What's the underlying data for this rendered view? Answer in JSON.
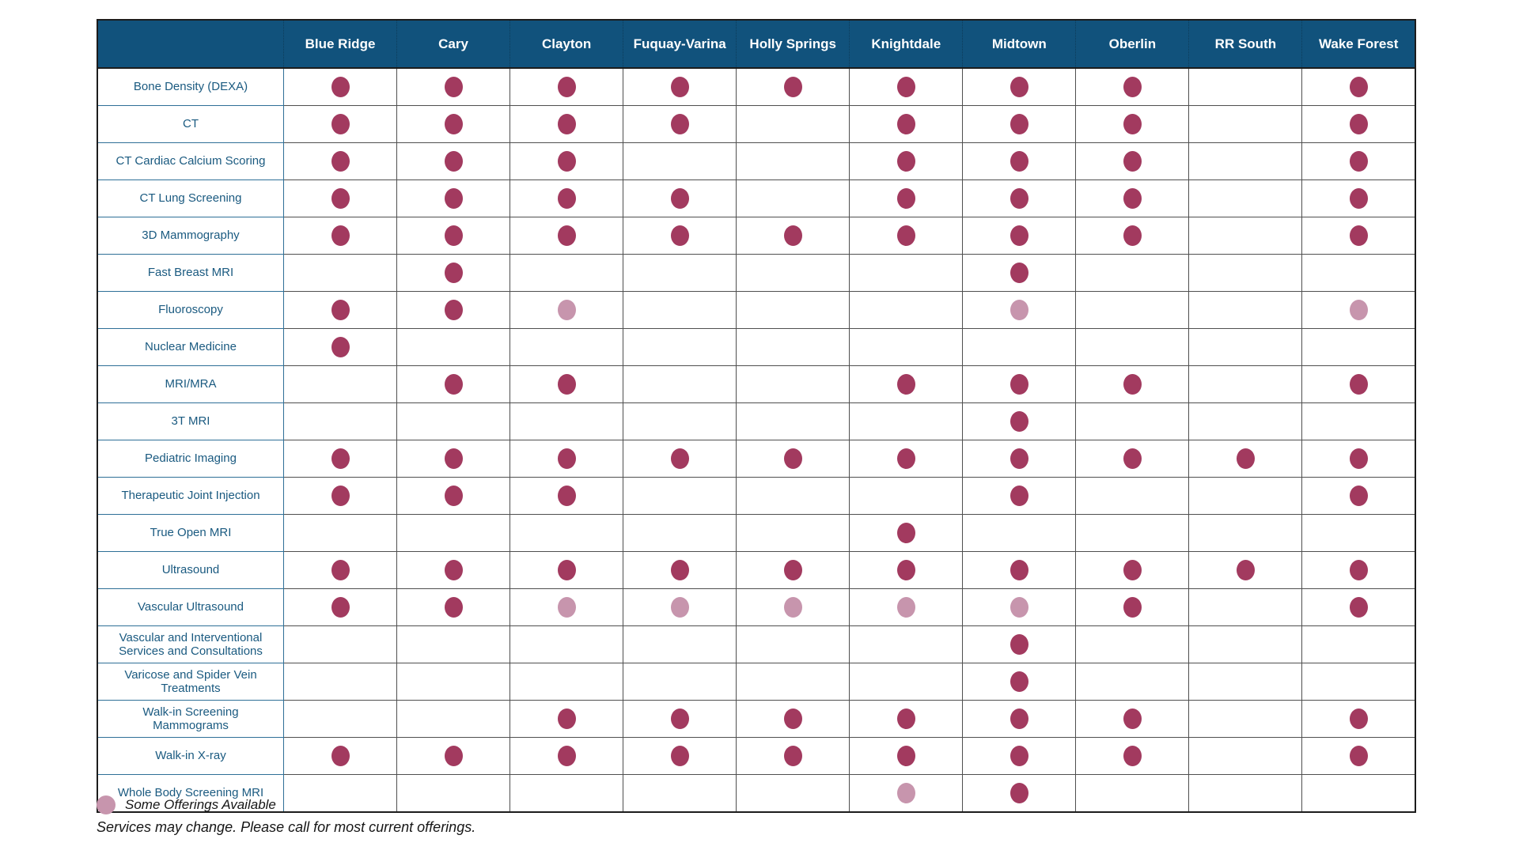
{
  "colors": {
    "header_bg": "#11527c",
    "full_dot": "#a23a5f",
    "some_dot": "#c795ad",
    "label_text": "#1a5a80"
  },
  "table": {
    "columns": [
      "Blue Ridge",
      "Cary",
      "Clayton",
      "Fuquay-Varina",
      "Holly Springs",
      "Knightdale",
      "Midtown",
      "Oberlin",
      "RR South",
      "Wake Forest"
    ],
    "rows": [
      {
        "label": "Bone Density (DEXA)",
        "cells": [
          "full",
          "full",
          "full",
          "full",
          "full",
          "full",
          "full",
          "full",
          "",
          "full"
        ]
      },
      {
        "label": "CT",
        "cells": [
          "full",
          "full",
          "full",
          "full",
          "",
          "full",
          "full",
          "full",
          "",
          "full"
        ]
      },
      {
        "label": "CT Cardiac Calcium Scoring",
        "cells": [
          "full",
          "full",
          "full",
          "",
          "",
          "full",
          "full",
          "full",
          "",
          "full"
        ]
      },
      {
        "label": "CT Lung Screening",
        "cells": [
          "full",
          "full",
          "full",
          "full",
          "",
          "full",
          "full",
          "full",
          "",
          "full"
        ]
      },
      {
        "label": "3D Mammography",
        "cells": [
          "full",
          "full",
          "full",
          "full",
          "full",
          "full",
          "full",
          "full",
          "",
          "full"
        ]
      },
      {
        "label": "Fast Breast MRI",
        "cells": [
          "",
          "full",
          "",
          "",
          "",
          "",
          "full",
          "",
          "",
          ""
        ]
      },
      {
        "label": "Fluoroscopy",
        "cells": [
          "full",
          "full",
          "some",
          "",
          "",
          "",
          "some",
          "",
          "",
          "some"
        ]
      },
      {
        "label": "Nuclear Medicine",
        "cells": [
          "full",
          "",
          "",
          "",
          "",
          "",
          "",
          "",
          "",
          ""
        ]
      },
      {
        "label": "MRI/MRA",
        "cells": [
          "",
          "full",
          "full",
          "",
          "",
          "full",
          "full",
          "full",
          "",
          "full"
        ]
      },
      {
        "label": "3T MRI",
        "cells": [
          "",
          "",
          "",
          "",
          "",
          "",
          "full",
          "",
          "",
          ""
        ]
      },
      {
        "label": "Pediatric Imaging",
        "cells": [
          "full",
          "full",
          "full",
          "full",
          "full",
          "full",
          "full",
          "full",
          "full",
          "full"
        ]
      },
      {
        "label": "Therapeutic Joint Injection",
        "cells": [
          "full",
          "full",
          "full",
          "",
          "",
          "",
          "full",
          "",
          "",
          "full"
        ]
      },
      {
        "label": "True Open MRI",
        "cells": [
          "",
          "",
          "",
          "",
          "",
          "full",
          "",
          "",
          "",
          ""
        ]
      },
      {
        "label": "Ultrasound",
        "cells": [
          "full",
          "full",
          "full",
          "full",
          "full",
          "full",
          "full",
          "full",
          "full",
          "full"
        ]
      },
      {
        "label": "Vascular Ultrasound",
        "cells": [
          "full",
          "full",
          "some",
          "some",
          "some",
          "some",
          "some",
          "full",
          "",
          "full"
        ]
      },
      {
        "label": "Vascular and Interventional Services and Consultations",
        "cells": [
          "",
          "",
          "",
          "",
          "",
          "",
          "full",
          "",
          "",
          ""
        ]
      },
      {
        "label": "Varicose and Spider Vein Treatments",
        "cells": [
          "",
          "",
          "",
          "",
          "",
          "",
          "full",
          "",
          "",
          ""
        ]
      },
      {
        "label": "Walk-in Screening Mammograms",
        "cells": [
          "",
          "",
          "full",
          "full",
          "full",
          "full",
          "full",
          "full",
          "",
          "full"
        ]
      },
      {
        "label": "Walk-in X-ray",
        "cells": [
          "full",
          "full",
          "full",
          "full",
          "full",
          "full",
          "full",
          "full",
          "",
          "full"
        ]
      },
      {
        "label": "Whole Body Screening MRI",
        "cells": [
          "",
          "",
          "",
          "",
          "",
          "some",
          "full",
          "",
          "",
          ""
        ]
      }
    ]
  },
  "legend": {
    "some_label": "Some Offerings Available"
  },
  "footer": {
    "note": "Services may change. Please call for most current offerings."
  }
}
